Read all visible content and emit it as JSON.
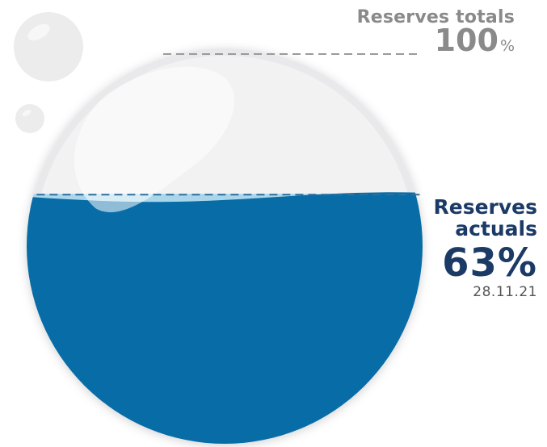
{
  "chart_data": {
    "type": "gauge",
    "total": {
      "label": "Reserves totals",
      "value": 100,
      "unit": "%"
    },
    "current": {
      "label": "Reserves actuals",
      "value": 63,
      "display": "63%",
      "date": "28.11.21"
    }
  },
  "colors": {
    "water": "#086ca7",
    "water_surface": "#a9d6ea",
    "empty": "#f2f2f3",
    "outline": "#e3e3e5",
    "label_total": "#8a8a8a",
    "label_current": "#1b3a66"
  }
}
